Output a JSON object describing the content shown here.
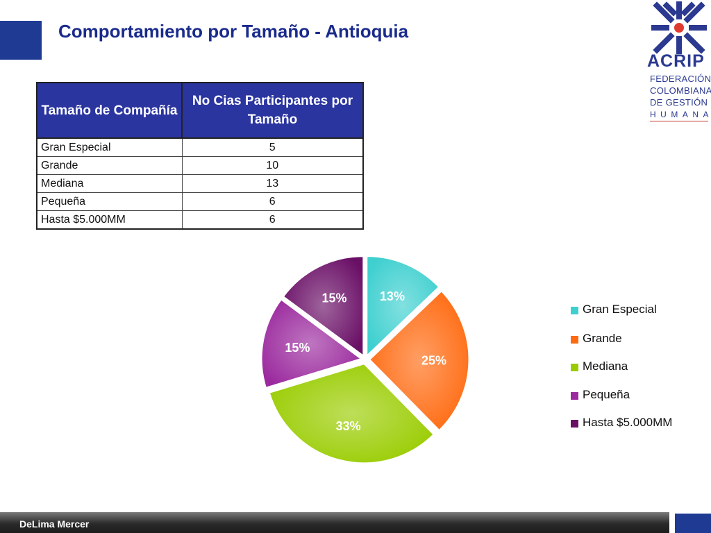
{
  "header": {
    "title": "Comportamiento por Tamaño - Antioquia"
  },
  "logo": {
    "word": "ACRIP",
    "lines": [
      "FEDERACIÓN",
      "COLOMBIANA",
      "DE GESTIÓN",
      "HUMANA"
    ],
    "colors": {
      "navy": "#2b3990",
      "red": "#e03a2f"
    }
  },
  "table": {
    "headers": [
      "Tamaño de Compañía",
      "No Cias Participantes por Tamaño"
    ],
    "rows": [
      [
        "Gran Especial",
        "5"
      ],
      [
        "Grande",
        "10"
      ],
      [
        "Mediana",
        "13"
      ],
      [
        "Pequeña",
        "6"
      ],
      [
        "Hasta $5.000MM",
        "6"
      ]
    ]
  },
  "chart_data": {
    "type": "pie",
    "categories": [
      "Gran Especial",
      "Grande",
      "Mediana",
      "Pequeña",
      "Hasta $5.000MM"
    ],
    "values": [
      13,
      25,
      33,
      15,
      15
    ],
    "value_labels": [
      "13%",
      "25%",
      "33%",
      "15%",
      "15%"
    ],
    "colors": [
      "#3ecfcf",
      "#ff6a10",
      "#99cc00",
      "#9b2a9e",
      "#6a0f66"
    ],
    "legend_position": "right",
    "title": "",
    "exploded": true
  },
  "footer": {
    "text": "DeLima Mercer"
  }
}
